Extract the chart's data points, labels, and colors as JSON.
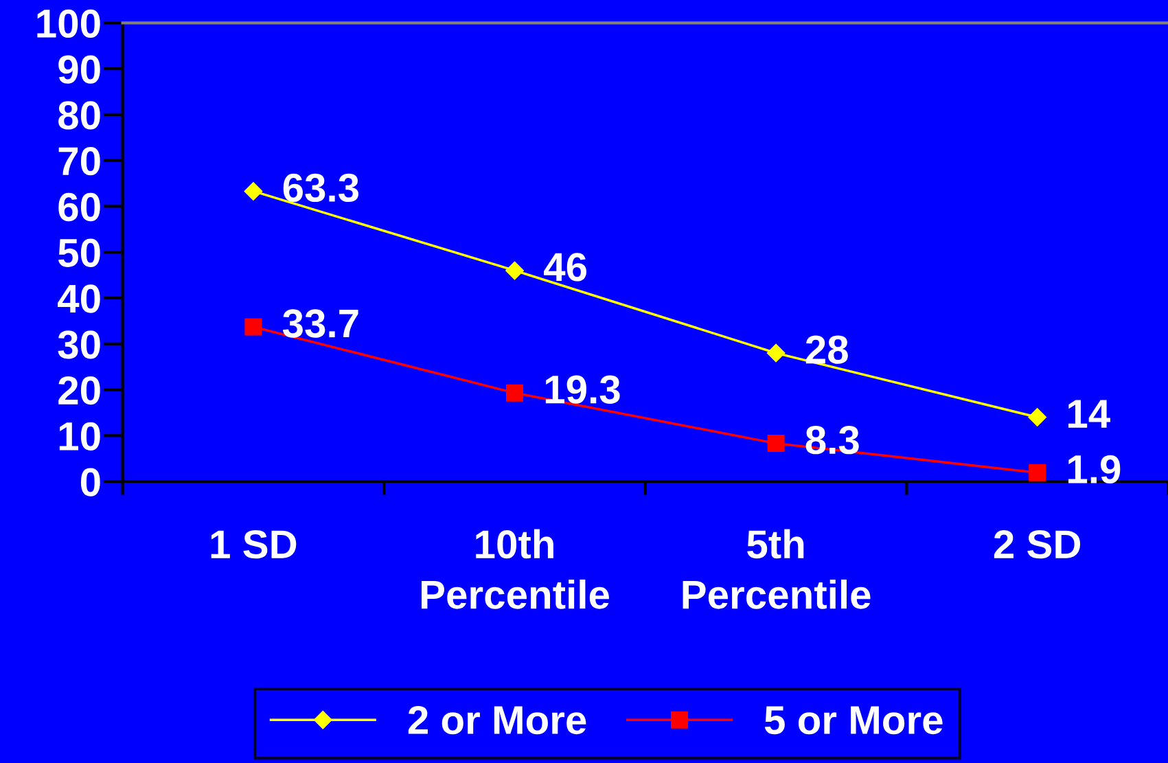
{
  "chart_data": {
    "type": "line",
    "categories": [
      "1 SD",
      "10th\nPercentile",
      "5th\nPercentile",
      "2 SD"
    ],
    "series": [
      {
        "name": "2 or More",
        "color": "#ffff00",
        "values": [
          63.3,
          46,
          28,
          14
        ],
        "marker": "diamond"
      },
      {
        "name": "5 or More",
        "color": "#ff0000",
        "values": [
          33.7,
          19.3,
          8.3,
          1.9
        ],
        "marker": "square"
      }
    ],
    "ylim": [
      0,
      100
    ],
    "yticks": [
      0,
      10,
      20,
      30,
      40,
      50,
      60,
      70,
      80,
      90,
      100
    ],
    "data_labels": true,
    "legend": "bottom",
    "grid": false,
    "line_style": "solid"
  }
}
